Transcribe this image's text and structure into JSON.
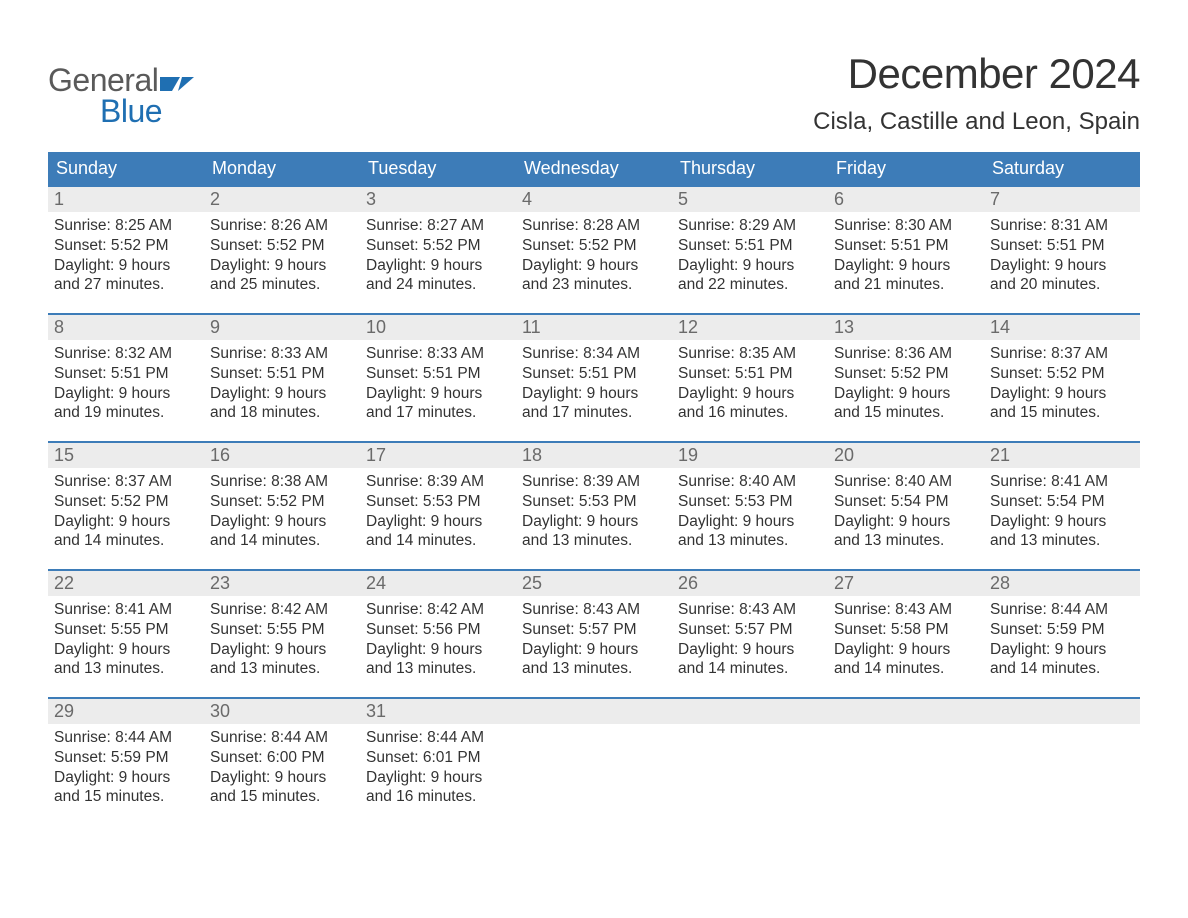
{
  "brand": {
    "word1": "General",
    "word2": "Blue",
    "flag_color": "#1f6fb2",
    "text_gray": "#5a5a5a"
  },
  "title": "December 2024",
  "location": "Cisla, Castille and Leon, Spain",
  "colors": {
    "header_bg": "#3d7cb8",
    "header_fg": "#ffffff",
    "row_border": "#3d7cb8",
    "daynum_bg": "#ececec",
    "daynum_fg": "#6a6a6a",
    "body_fg": "#333333",
    "page_bg": "#ffffff"
  },
  "weekdays": [
    "Sunday",
    "Monday",
    "Tuesday",
    "Wednesday",
    "Thursday",
    "Friday",
    "Saturday"
  ],
  "weeks": [
    [
      {
        "n": "1",
        "sr": "Sunrise: 8:25 AM",
        "ss": "Sunset: 5:52 PM",
        "d1": "Daylight: 9 hours",
        "d2": "and 27 minutes."
      },
      {
        "n": "2",
        "sr": "Sunrise: 8:26 AM",
        "ss": "Sunset: 5:52 PM",
        "d1": "Daylight: 9 hours",
        "d2": "and 25 minutes."
      },
      {
        "n": "3",
        "sr": "Sunrise: 8:27 AM",
        "ss": "Sunset: 5:52 PM",
        "d1": "Daylight: 9 hours",
        "d2": "and 24 minutes."
      },
      {
        "n": "4",
        "sr": "Sunrise: 8:28 AM",
        "ss": "Sunset: 5:52 PM",
        "d1": "Daylight: 9 hours",
        "d2": "and 23 minutes."
      },
      {
        "n": "5",
        "sr": "Sunrise: 8:29 AM",
        "ss": "Sunset: 5:51 PM",
        "d1": "Daylight: 9 hours",
        "d2": "and 22 minutes."
      },
      {
        "n": "6",
        "sr": "Sunrise: 8:30 AM",
        "ss": "Sunset: 5:51 PM",
        "d1": "Daylight: 9 hours",
        "d2": "and 21 minutes."
      },
      {
        "n": "7",
        "sr": "Sunrise: 8:31 AM",
        "ss": "Sunset: 5:51 PM",
        "d1": "Daylight: 9 hours",
        "d2": "and 20 minutes."
      }
    ],
    [
      {
        "n": "8",
        "sr": "Sunrise: 8:32 AM",
        "ss": "Sunset: 5:51 PM",
        "d1": "Daylight: 9 hours",
        "d2": "and 19 minutes."
      },
      {
        "n": "9",
        "sr": "Sunrise: 8:33 AM",
        "ss": "Sunset: 5:51 PM",
        "d1": "Daylight: 9 hours",
        "d2": "and 18 minutes."
      },
      {
        "n": "10",
        "sr": "Sunrise: 8:33 AM",
        "ss": "Sunset: 5:51 PM",
        "d1": "Daylight: 9 hours",
        "d2": "and 17 minutes."
      },
      {
        "n": "11",
        "sr": "Sunrise: 8:34 AM",
        "ss": "Sunset: 5:51 PM",
        "d1": "Daylight: 9 hours",
        "d2": "and 17 minutes."
      },
      {
        "n": "12",
        "sr": "Sunrise: 8:35 AM",
        "ss": "Sunset: 5:51 PM",
        "d1": "Daylight: 9 hours",
        "d2": "and 16 minutes."
      },
      {
        "n": "13",
        "sr": "Sunrise: 8:36 AM",
        "ss": "Sunset: 5:52 PM",
        "d1": "Daylight: 9 hours",
        "d2": "and 15 minutes."
      },
      {
        "n": "14",
        "sr": "Sunrise: 8:37 AM",
        "ss": "Sunset: 5:52 PM",
        "d1": "Daylight: 9 hours",
        "d2": "and 15 minutes."
      }
    ],
    [
      {
        "n": "15",
        "sr": "Sunrise: 8:37 AM",
        "ss": "Sunset: 5:52 PM",
        "d1": "Daylight: 9 hours",
        "d2": "and 14 minutes."
      },
      {
        "n": "16",
        "sr": "Sunrise: 8:38 AM",
        "ss": "Sunset: 5:52 PM",
        "d1": "Daylight: 9 hours",
        "d2": "and 14 minutes."
      },
      {
        "n": "17",
        "sr": "Sunrise: 8:39 AM",
        "ss": "Sunset: 5:53 PM",
        "d1": "Daylight: 9 hours",
        "d2": "and 14 minutes."
      },
      {
        "n": "18",
        "sr": "Sunrise: 8:39 AM",
        "ss": "Sunset: 5:53 PM",
        "d1": "Daylight: 9 hours",
        "d2": "and 13 minutes."
      },
      {
        "n": "19",
        "sr": "Sunrise: 8:40 AM",
        "ss": "Sunset: 5:53 PM",
        "d1": "Daylight: 9 hours",
        "d2": "and 13 minutes."
      },
      {
        "n": "20",
        "sr": "Sunrise: 8:40 AM",
        "ss": "Sunset: 5:54 PM",
        "d1": "Daylight: 9 hours",
        "d2": "and 13 minutes."
      },
      {
        "n": "21",
        "sr": "Sunrise: 8:41 AM",
        "ss": "Sunset: 5:54 PM",
        "d1": "Daylight: 9 hours",
        "d2": "and 13 minutes."
      }
    ],
    [
      {
        "n": "22",
        "sr": "Sunrise: 8:41 AM",
        "ss": "Sunset: 5:55 PM",
        "d1": "Daylight: 9 hours",
        "d2": "and 13 minutes."
      },
      {
        "n": "23",
        "sr": "Sunrise: 8:42 AM",
        "ss": "Sunset: 5:55 PM",
        "d1": "Daylight: 9 hours",
        "d2": "and 13 minutes."
      },
      {
        "n": "24",
        "sr": "Sunrise: 8:42 AM",
        "ss": "Sunset: 5:56 PM",
        "d1": "Daylight: 9 hours",
        "d2": "and 13 minutes."
      },
      {
        "n": "25",
        "sr": "Sunrise: 8:43 AM",
        "ss": "Sunset: 5:57 PM",
        "d1": "Daylight: 9 hours",
        "d2": "and 13 minutes."
      },
      {
        "n": "26",
        "sr": "Sunrise: 8:43 AM",
        "ss": "Sunset: 5:57 PM",
        "d1": "Daylight: 9 hours",
        "d2": "and 14 minutes."
      },
      {
        "n": "27",
        "sr": "Sunrise: 8:43 AM",
        "ss": "Sunset: 5:58 PM",
        "d1": "Daylight: 9 hours",
        "d2": "and 14 minutes."
      },
      {
        "n": "28",
        "sr": "Sunrise: 8:44 AM",
        "ss": "Sunset: 5:59 PM",
        "d1": "Daylight: 9 hours",
        "d2": "and 14 minutes."
      }
    ],
    [
      {
        "n": "29",
        "sr": "Sunrise: 8:44 AM",
        "ss": "Sunset: 5:59 PM",
        "d1": "Daylight: 9 hours",
        "d2": "and 15 minutes."
      },
      {
        "n": "30",
        "sr": "Sunrise: 8:44 AM",
        "ss": "Sunset: 6:00 PM",
        "d1": "Daylight: 9 hours",
        "d2": "and 15 minutes."
      },
      {
        "n": "31",
        "sr": "Sunrise: 8:44 AM",
        "ss": "Sunset: 6:01 PM",
        "d1": "Daylight: 9 hours",
        "d2": "and 16 minutes."
      },
      {
        "empty": true
      },
      {
        "empty": true
      },
      {
        "empty": true
      },
      {
        "empty": true
      }
    ]
  ]
}
